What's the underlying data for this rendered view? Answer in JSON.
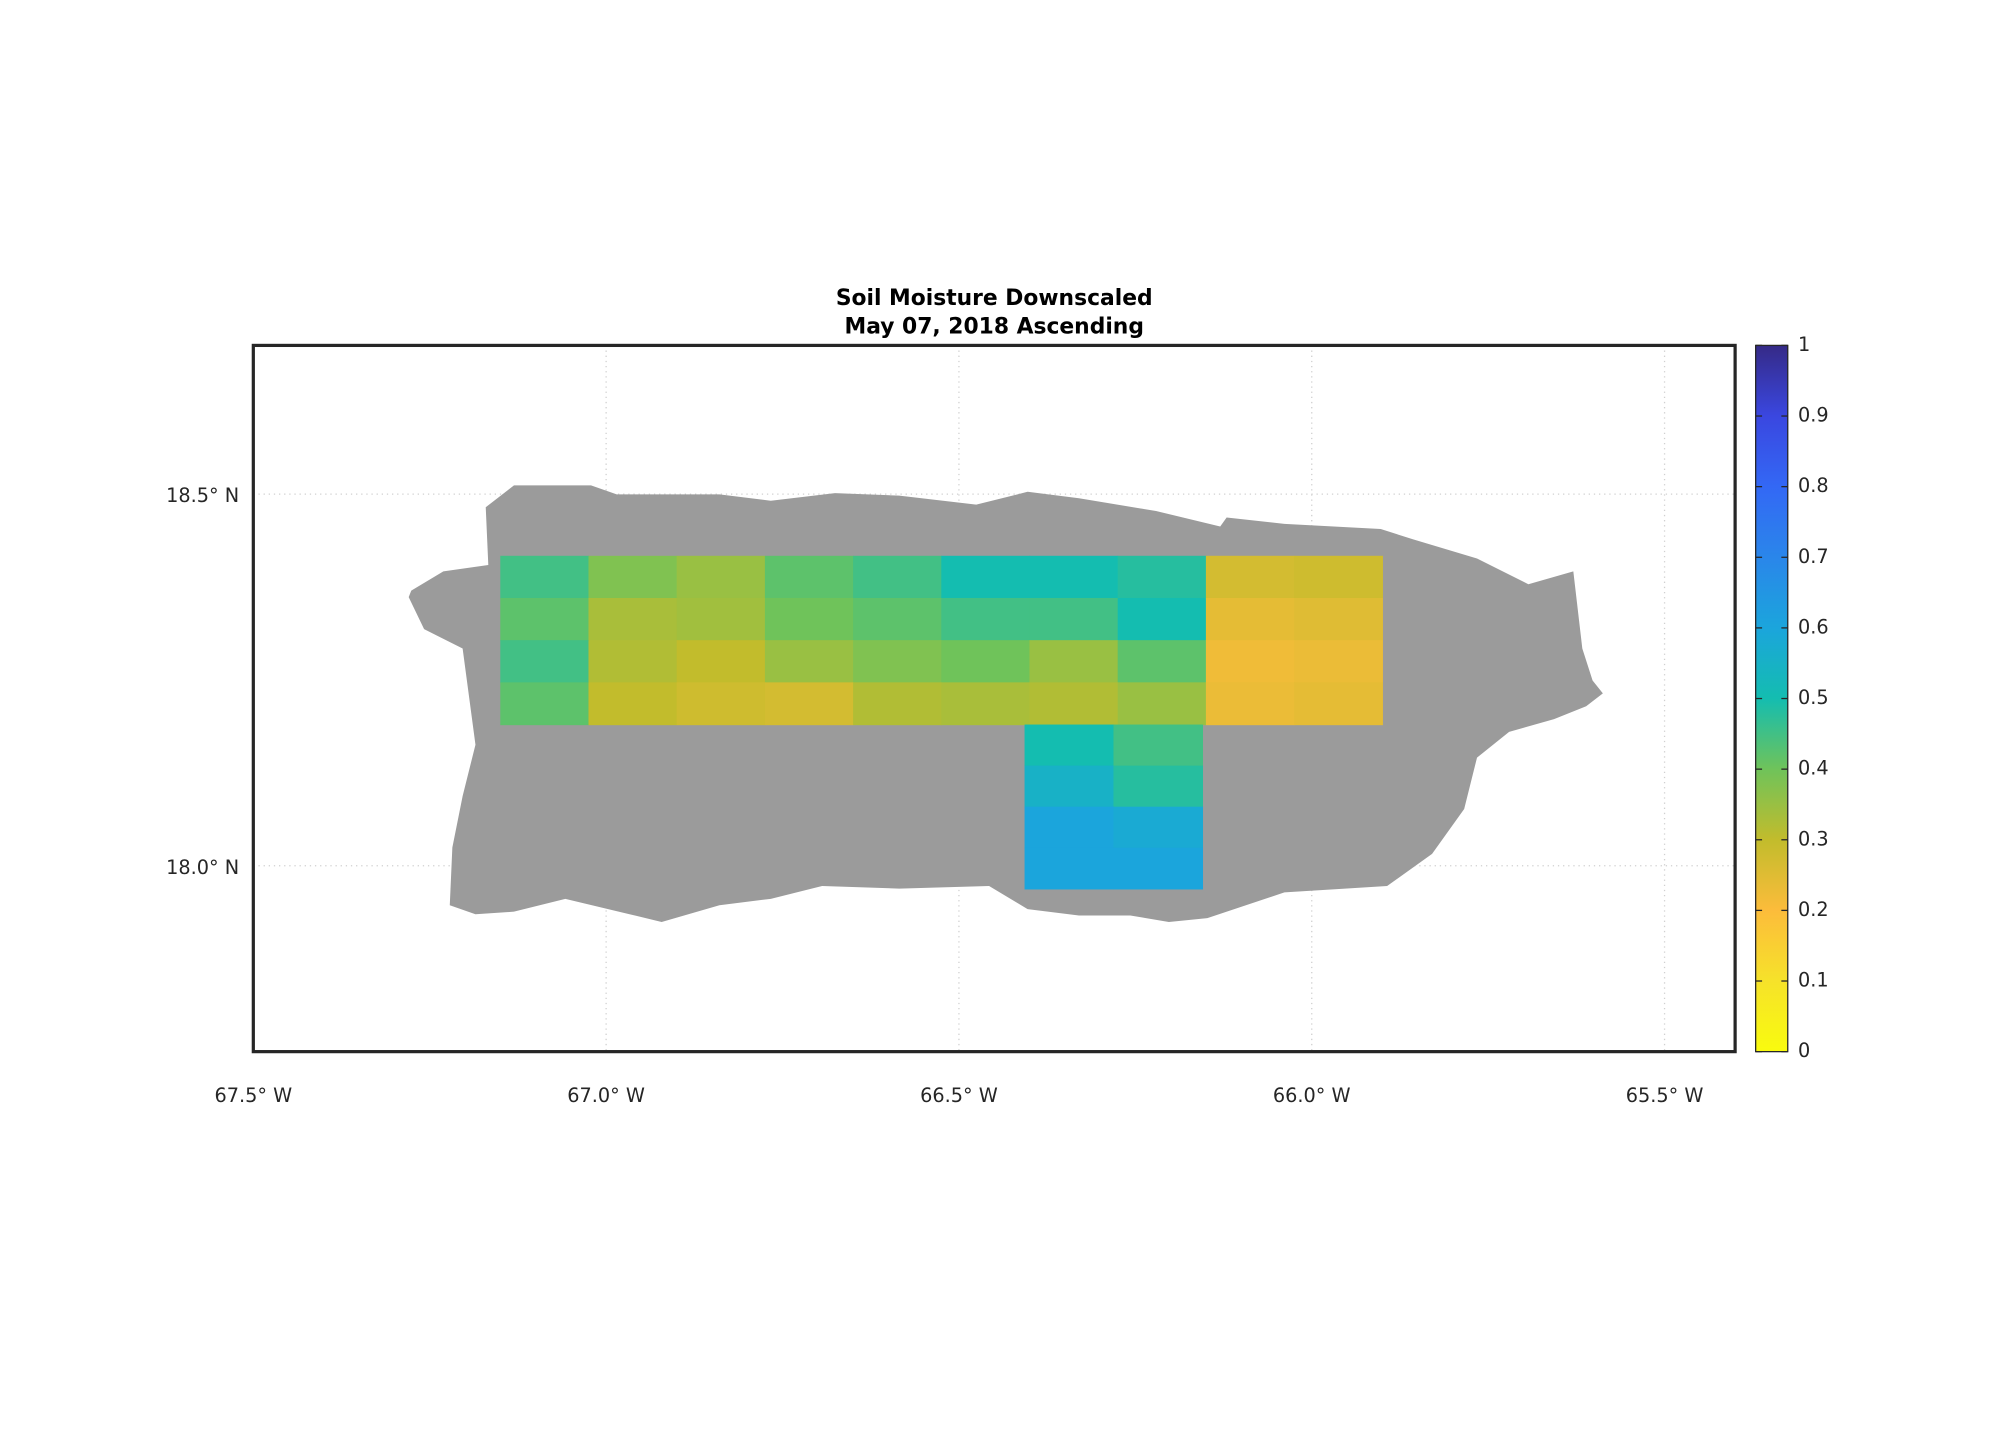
{
  "chart_data": {
    "type": "map",
    "title": "Soil Moisture Downscaled",
    "subtitle": "May 07, 2018 Ascending",
    "xlim": [
      -67.5,
      -65.4
    ],
    "ylim": [
      17.75,
      18.7
    ],
    "xticks": [
      {
        "value": -67.5,
        "label": "67.5° W"
      },
      {
        "value": -67.0,
        "label": "67.0° W"
      },
      {
        "value": -66.5,
        "label": "66.5° W"
      },
      {
        "value": -66.0,
        "label": "66.0° W"
      },
      {
        "value": -65.5,
        "label": "65.5° W"
      }
    ],
    "yticks": [
      {
        "value": 18.0,
        "label": "18.0° N"
      },
      {
        "value": 18.5,
        "label": "18.5° N"
      }
    ],
    "grid": true,
    "clim": [
      0,
      1
    ],
    "cticks": [
      0,
      0.1,
      0.2,
      0.3,
      0.4,
      0.5,
      0.6,
      0.7,
      0.8,
      0.9,
      1
    ],
    "tiles": [
      {
        "lon": [
          -67.15,
          -66.15
        ],
        "lat": [
          18.19,
          18.417
        ],
        "values": [
          [
            0.45,
            0.38,
            0.35,
            0.42,
            0.45,
            0.5,
            0.5,
            0.48
          ],
          [
            0.42,
            0.33,
            0.34,
            0.4,
            0.42,
            0.45,
            0.45,
            0.5
          ],
          [
            0.45,
            0.32,
            0.3,
            0.35,
            0.38,
            0.4,
            0.35,
            0.42
          ],
          [
            0.42,
            0.3,
            0.28,
            0.27,
            0.32,
            0.33,
            0.32,
            0.35
          ]
        ]
      },
      {
        "lon": [
          -66.15,
          -65.9
        ],
        "lat": [
          18.19,
          18.417
        ],
        "values": [
          [
            0.27,
            0.28
          ],
          [
            0.24,
            0.25
          ],
          [
            0.22,
            0.23
          ],
          [
            0.23,
            0.24
          ]
        ]
      },
      {
        "lon": [
          -66.407,
          -66.155
        ],
        "lat": [
          17.969,
          18.19
        ],
        "values": [
          [
            0.5,
            0.45
          ],
          [
            0.55,
            0.48
          ],
          [
            0.6,
            0.58
          ],
          [
            0.6,
            0.6
          ]
        ]
      }
    ]
  }
}
